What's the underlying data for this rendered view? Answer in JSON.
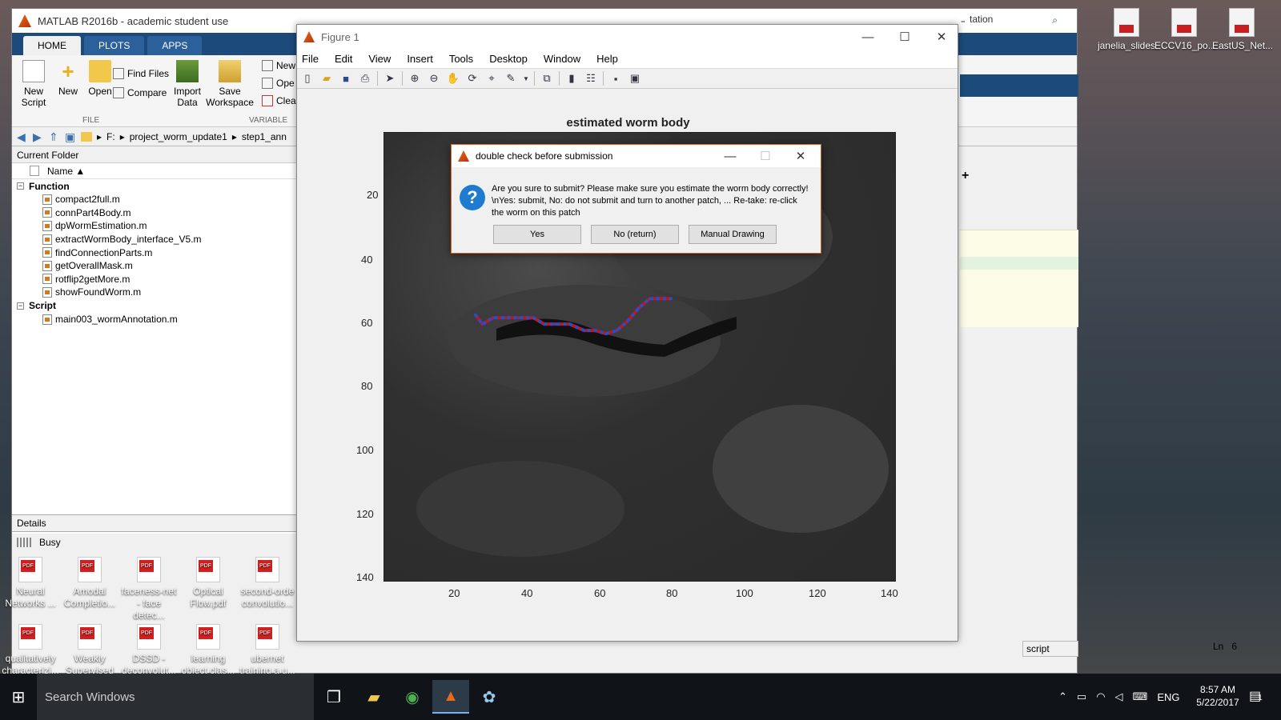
{
  "matlab": {
    "title": "MATLAB R2016b - academic student use",
    "tabs": [
      "HOME",
      "PLOTS",
      "APPS"
    ],
    "ribbon": {
      "new_script": "New Script",
      "new": "New",
      "open": "Open",
      "find_files": "Find Files",
      "compare": "Compare",
      "import_data": "Import Data",
      "save_workspace": "Save Workspace",
      "new_var": "New",
      "open_var": "Ope",
      "clear": "Clea",
      "group_file": "FILE",
      "group_variable": "VARIABLE"
    },
    "path": [
      "F:",
      "project_worm_update1",
      "step1_ann"
    ],
    "current_folder": "Current Folder",
    "name_col": "Name ▲",
    "groups": [
      {
        "label": "Function",
        "items": [
          "compact2full.m",
          "connPart4Body.m",
          "dpWormEstimation.m",
          "extractWormBody_interface_V5.m",
          "findConnectionParts.m",
          "getOverallMask.m",
          "rotflip2getMore.m",
          "showFoundWorm.m"
        ]
      },
      {
        "label": "Script",
        "items": [
          "main003_wormAnnotation.m"
        ]
      }
    ],
    "details": "Details",
    "status": "Busy",
    "search_text": "tation",
    "script_status": "script",
    "ln_label": "Ln",
    "ln_value": "6"
  },
  "figure": {
    "title": "Figure 1",
    "menu": [
      "File",
      "Edit",
      "View",
      "Insert",
      "Tools",
      "Desktop",
      "Window",
      "Help"
    ],
    "axes_title": "estimated worm body",
    "xticks": [
      "20",
      "40",
      "60",
      "80",
      "100",
      "120",
      "140"
    ],
    "yticks": [
      "20",
      "40",
      "60",
      "80",
      "100",
      "120",
      "140"
    ]
  },
  "chart_data": {
    "type": "line",
    "title": "estimated worm body",
    "x": [
      30,
      32,
      35,
      38,
      42,
      46,
      49,
      52,
      56,
      60,
      63,
      66,
      69,
      72,
      75,
      78,
      80,
      82,
      84
    ],
    "y": [
      62,
      65,
      63,
      63,
      63,
      63,
      65,
      65,
      65,
      67,
      67,
      68,
      67,
      64,
      60,
      57,
      57,
      57,
      57
    ],
    "xlim": [
      5,
      146
    ],
    "ylim": [
      5,
      146
    ],
    "yreversed": true,
    "series_colors": [
      "#d01010",
      "#2050d0"
    ]
  },
  "dialog": {
    "title": "double check before submission",
    "message": "Are you sure to submit? Please make sure you estimate the worm body correctly! \\nYes: submit, No: do not submit and turn to another patch, ... Re-take: re-click the worm on this patch",
    "buttons": [
      "Yes",
      "No (return)",
      "Manual Drawing"
    ]
  },
  "desktop": {
    "top_icons": [
      "janelia_slides",
      "ECCV16_po...",
      "EastUS_Net..."
    ],
    "bottom_row1": [
      "Neural Networks ...",
      "Amodal Completio...",
      "faceness-net - face detec...",
      "Optical Flow.pdf",
      "second-orde convolutio..."
    ],
    "bottom_row2": [
      "qualitatively characterizi...",
      "Weakly Supervised ...",
      "DSSD - deconvolut...",
      "learning object clas...",
      "ubernet training a u..."
    ]
  },
  "taskbar": {
    "search": "Search Windows",
    "lang": "ENG",
    "time": "8:57 AM",
    "date": "5/22/2017",
    "notif_count": "1"
  }
}
